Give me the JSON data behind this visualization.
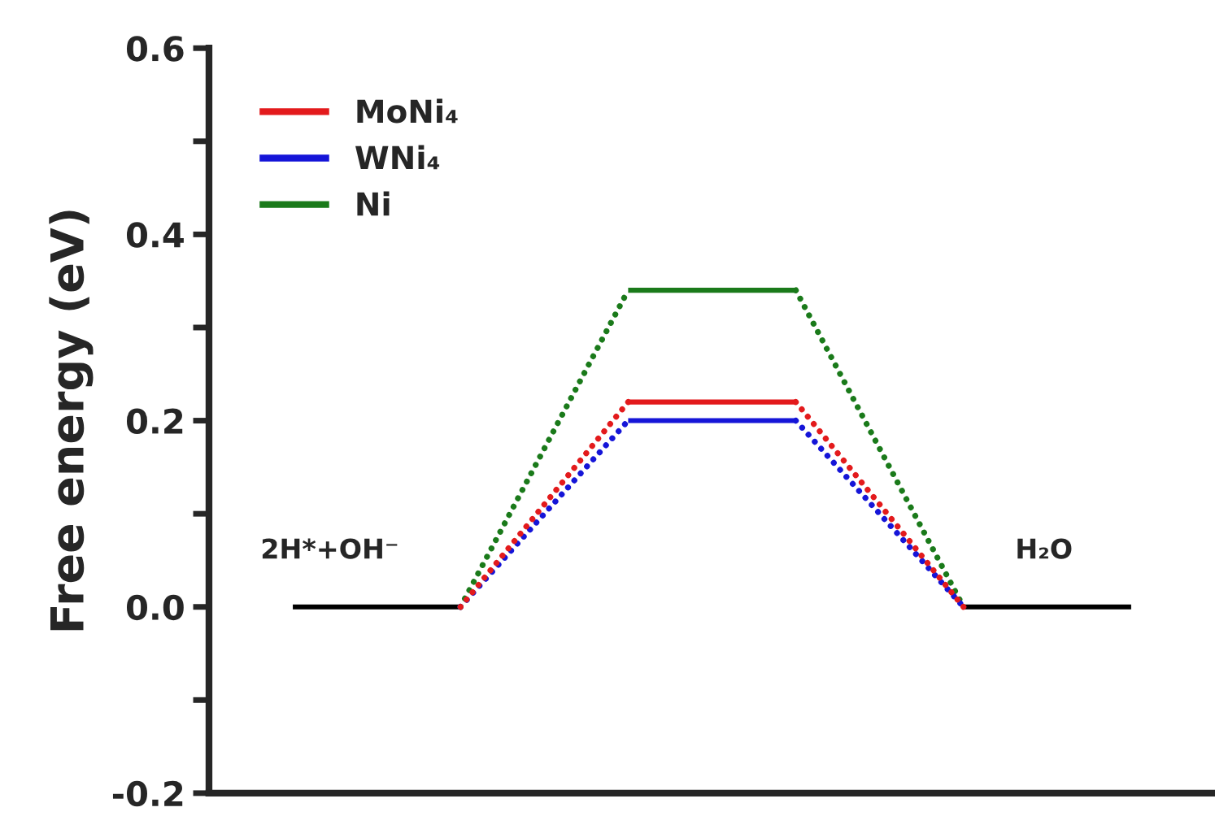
{
  "chart_data": {
    "type": "line",
    "ylabel": "Free energy (eV)",
    "categories": [
      null,
      null,
      null,
      null,
      null,
      null
    ],
    "ylim": [
      -0.2,
      0.6
    ],
    "yticks": [
      {
        "value": -0.2,
        "label": "-0.2"
      },
      {
        "value": -0.1,
        "label": null
      },
      {
        "value": 0,
        "label": "0.0"
      },
      {
        "value": 0.1,
        "label": null
      },
      {
        "value": 0.2,
        "label": "0.2"
      },
      {
        "value": 0.3,
        "label": null
      },
      {
        "value": 0.4,
        "label": "0.4"
      },
      {
        "value": 0.5,
        "label": null
      },
      {
        "value": 0.6,
        "label": "0.6"
      }
    ],
    "tick_labels": "y",
    "legend": "top left",
    "series": [
      {
        "name": "MoNi₄",
        "color": "#e31a1c",
        "values": [
          null,
          null,
          0.22,
          0.22,
          null,
          null
        ],
        "line_style": "solid"
      },
      {
        "name": "WNi₄",
        "color": "#1515d8",
        "values": [
          null,
          null,
          0.2,
          0.2,
          null,
          null
        ],
        "line_style": "solid"
      },
      {
        "name": "Ni",
        "color": "#1a7a1a",
        "values": [
          null,
          null,
          0.34,
          0.34,
          null,
          null
        ],
        "line_style": "solid"
      },
      {
        "color": "#e31a1c",
        "values": [
          null,
          0,
          0.22,
          null,
          null,
          null
        ],
        "line_style": "dotted"
      },
      {
        "color": "#e31a1c",
        "values": [
          null,
          null,
          null,
          0.22,
          0,
          null
        ],
        "line_style": "dotted"
      },
      {
        "color": "#1515d8",
        "values": [
          null,
          0,
          0.2,
          null,
          null,
          null
        ],
        "line_style": "dotted"
      },
      {
        "color": "#1515d8",
        "values": [
          null,
          null,
          null,
          0.2,
          0,
          null
        ],
        "line_style": "dotted"
      },
      {
        "color": "#1a7a1a",
        "values": [
          null,
          0,
          0.34,
          null,
          null,
          null
        ],
        "line_style": "dotted"
      },
      {
        "color": "#1a7a1a",
        "values": [
          null,
          null,
          null,
          0.34,
          0,
          null
        ],
        "line_style": "dotted"
      },
      {
        "color": "#000000",
        "values": [
          0,
          0,
          null,
          null,
          null,
          null
        ],
        "line_style": "solid"
      },
      {
        "color": "#000000",
        "values": [
          null,
          null,
          null,
          null,
          0,
          0
        ],
        "line_style": "solid"
      }
    ],
    "annotations": [
      "2H*+OH⁻",
      "H₂O"
    ]
  }
}
